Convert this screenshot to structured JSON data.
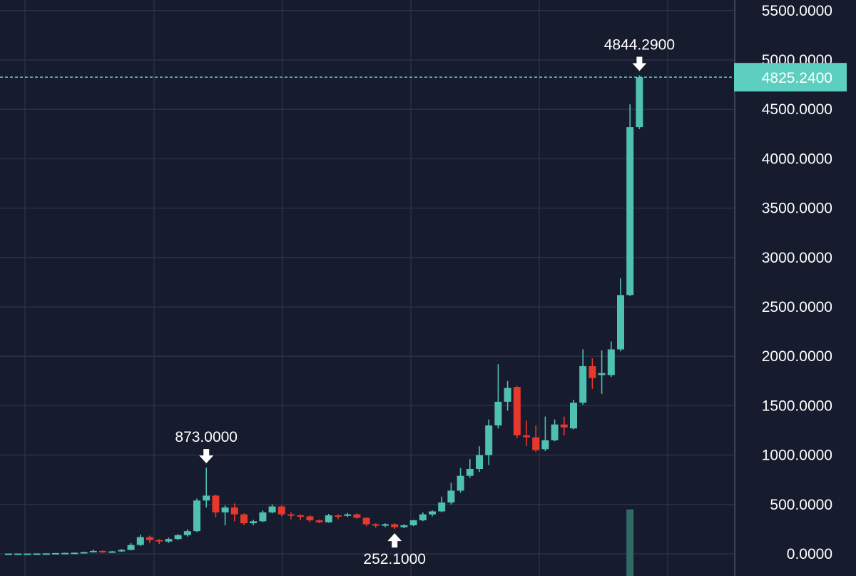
{
  "colors": {
    "background": "#161b2d",
    "grid": "#2a3145",
    "up": "#4fc1b0",
    "down": "#e8372c",
    "text": "#ffffff",
    "volume": "#2f6b64",
    "price_line": "#5ccfc0"
  },
  "chart_data": {
    "type": "candlestick",
    "title": "",
    "xlabel": "",
    "ylabel": "",
    "ylim": [
      -50,
      5800
    ],
    "yticks": [
      0,
      500,
      1000,
      1500,
      2000,
      2500,
      3000,
      3500,
      4000,
      4500,
      5000,
      5500
    ],
    "ytick_labels": [
      "0.0000",
      "500.0000",
      "1000.0000",
      "1500.0000",
      "2000.0000",
      "2500.0000",
      "3000.0000",
      "3500.0000",
      "4000.0000",
      "4500.0000",
      "5000.0000",
      "5500.0000"
    ],
    "y_axis_position": "right",
    "grid": true,
    "candles": [
      [
        2,
        3,
        0,
        4
      ],
      [
        3,
        3,
        1,
        4
      ],
      [
        3,
        3,
        1,
        4
      ],
      [
        3,
        4,
        2,
        5
      ],
      [
        4,
        5,
        3,
        6
      ],
      [
        5,
        8,
        4,
        9
      ],
      [
        8,
        10,
        6,
        12
      ],
      [
        10,
        12,
        8,
        14
      ],
      [
        12,
        18,
        10,
        22
      ],
      [
        18,
        30,
        15,
        45
      ],
      [
        30,
        22,
        10,
        35
      ],
      [
        22,
        25,
        15,
        30
      ],
      [
        25,
        40,
        20,
        50
      ],
      [
        40,
        90,
        35,
        110
      ],
      [
        90,
        170,
        80,
        195
      ],
      [
        170,
        140,
        110,
        185
      ],
      [
        140,
        125,
        100,
        150
      ],
      [
        125,
        150,
        110,
        165
      ],
      [
        150,
        190,
        140,
        200
      ],
      [
        190,
        230,
        175,
        250
      ],
      [
        230,
        540,
        220,
        560
      ],
      [
        540,
        590,
        470,
        873
      ],
      [
        590,
        420,
        370,
        600
      ],
      [
        420,
        470,
        290,
        490
      ],
      [
        470,
        400,
        330,
        510
      ],
      [
        400,
        310,
        290,
        410
      ],
      [
        310,
        330,
        290,
        345
      ],
      [
        330,
        420,
        320,
        440
      ],
      [
        420,
        480,
        410,
        500
      ],
      [
        480,
        400,
        380,
        490
      ],
      [
        400,
        390,
        350,
        420
      ],
      [
        390,
        380,
        340,
        400
      ],
      [
        380,
        340,
        320,
        390
      ],
      [
        340,
        320,
        310,
        350
      ],
      [
        320,
        390,
        315,
        405
      ],
      [
        390,
        385,
        350,
        400
      ],
      [
        385,
        400,
        375,
        415
      ],
      [
        400,
        365,
        355,
        410
      ],
      [
        365,
        300,
        280,
        370
      ],
      [
        300,
        285,
        265,
        310
      ],
      [
        285,
        300,
        270,
        310
      ],
      [
        300,
        270,
        252.1,
        310
      ],
      [
        270,
        290,
        260,
        300
      ],
      [
        290,
        340,
        280,
        345
      ],
      [
        340,
        400,
        330,
        420
      ],
      [
        400,
        430,
        380,
        440
      ],
      [
        430,
        520,
        420,
        580
      ],
      [
        520,
        640,
        500,
        720
      ],
      [
        640,
        790,
        620,
        870
      ],
      [
        790,
        860,
        770,
        960
      ],
      [
        860,
        1000,
        830,
        1090
      ],
      [
        1000,
        1300,
        900,
        1360
      ],
      [
        1300,
        1540,
        1270,
        1920
      ],
      [
        1540,
        1680,
        1450,
        1750
      ],
      [
        1690,
        1200,
        1170,
        1700
      ],
      [
        1200,
        1180,
        1090,
        1350
      ],
      [
        1180,
        1050,
        1030,
        1300
      ],
      [
        1060,
        1150,
        1040,
        1390
      ],
      [
        1150,
        1310,
        1140,
        1360
      ],
      [
        1310,
        1280,
        1200,
        1390
      ],
      [
        1270,
        1530,
        1260,
        1560
      ],
      [
        1530,
        1900,
        1510,
        2070
      ],
      [
        1900,
        1780,
        1670,
        1980
      ],
      [
        1810,
        1830,
        1620,
        2060
      ],
      [
        1810,
        2070,
        1790,
        2150
      ],
      [
        2070,
        2620,
        2050,
        2790
      ],
      [
        2620,
        4320,
        2610,
        4550
      ],
      [
        4320,
        4825.24,
        4300,
        4844.29
      ]
    ],
    "candle_fields": [
      "open",
      "close",
      "low",
      "high"
    ],
    "volume": [
      {
        "index": 66,
        "value": 450
      }
    ],
    "annotations": [
      {
        "text": "873.0000",
        "candle_index": 21,
        "value": 873,
        "kind": "high"
      },
      {
        "text": "252.1000",
        "candle_index": 41,
        "value": 252.1,
        "kind": "low"
      },
      {
        "text": "4844.2900",
        "candle_index": 67,
        "value": 4844.29,
        "kind": "high"
      }
    ],
    "last_price": {
      "value": 4825.24,
      "label": "4825.2400"
    }
  }
}
